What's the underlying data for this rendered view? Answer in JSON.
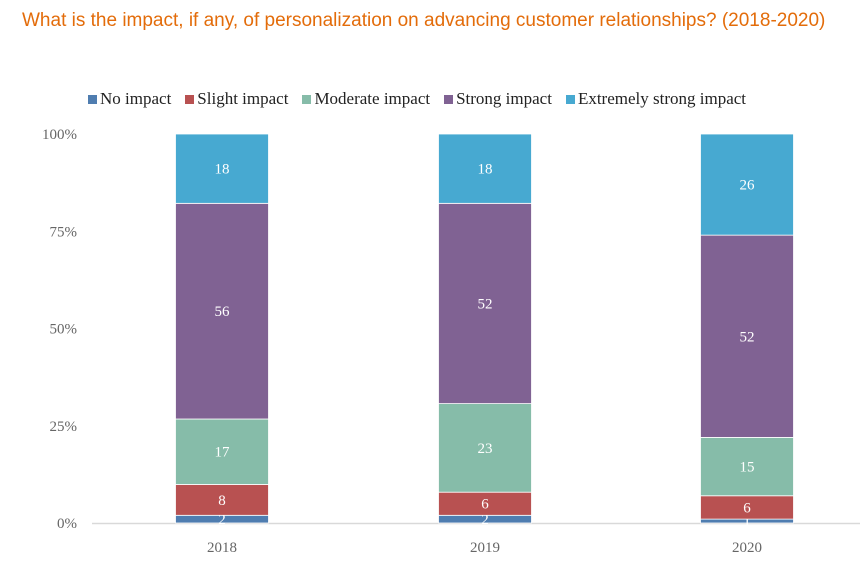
{
  "title": "What is the impact, if any, of personalization on advancing customer relationships? (2018-2020)",
  "chart_data": {
    "type": "bar",
    "stacked": "percent",
    "categories": [
      "2018",
      "2019",
      "2020"
    ],
    "series": [
      {
        "name": "No impact",
        "color": "#4F7DB0",
        "values": [
          2,
          2,
          1
        ]
      },
      {
        "name": "Slight impact",
        "color": "#B85151",
        "values": [
          8,
          6,
          6
        ]
      },
      {
        "name": "Moderate impact",
        "color": "#86BCA9",
        "values": [
          17,
          23,
          15
        ]
      },
      {
        "name": "Strong impact",
        "color": "#806293",
        "values": [
          56,
          52,
          52
        ]
      },
      {
        "name": "Extremely strong impact",
        "color": "#47A9D1",
        "values": [
          18,
          18,
          26
        ]
      }
    ],
    "y_ticks": [
      "0%",
      "25%",
      "50%",
      "75%",
      "100%"
    ],
    "ylim": [
      0,
      100
    ],
    "legend": "top",
    "grid": false
  }
}
